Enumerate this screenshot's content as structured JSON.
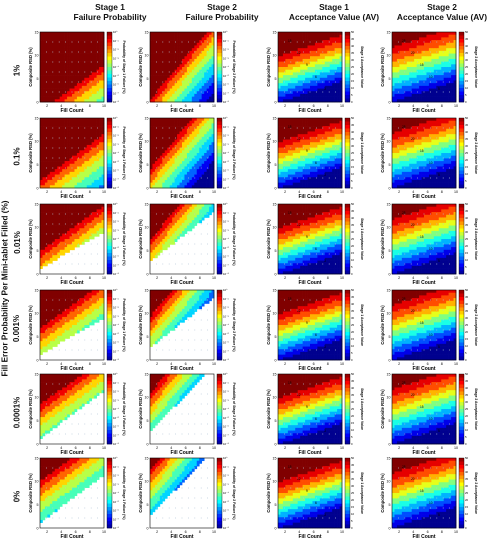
{
  "figure": {
    "y_axis_label": "Fill Error Probability Per Mini-tablet Filled (%)",
    "columns": [
      {
        "line1": "Stage 1",
        "line2": "Failure Probability"
      },
      {
        "line1": "Stage 2",
        "line2": "Failure Probability"
      },
      {
        "line1": "Stage 1",
        "line2": "Acceptance Value (AV)"
      },
      {
        "line1": "Stage 2",
        "line2": "Acceptance Value (AV)"
      }
    ],
    "rows": [
      "1%",
      "0.1%",
      "0.01%",
      "0.001%",
      "0.0001%",
      "0%"
    ]
  },
  "colors": {
    "jet": [
      "#00008f",
      "#0000ff",
      "#0080ff",
      "#00ffff",
      "#80ff80",
      "#ffff00",
      "#ff8000",
      "#ff0000",
      "#800000"
    ],
    "background": "#ffffff",
    "dots": "#b5c7d8"
  },
  "chart_data": [
    {
      "type": "heatmap",
      "panel": "stage1-failure-probability",
      "xlabel": "Fill Count",
      "ylabel": "Composite RSD (%)",
      "colorbar_label": "Probability of Stage 1 Failure (%)",
      "xticks": [
        "2",
        "4",
        "6",
        "8",
        "10"
      ],
      "yticks": [
        "0",
        "5",
        "10",
        "15"
      ],
      "xlim": [
        1,
        10
      ],
      "ylim": [
        0,
        15
      ],
      "colorbar_ticks": [
        "10⁰",
        "10⁻¹",
        "10⁻²",
        "10⁻³",
        "10⁻⁴",
        "10⁻⁵",
        "10⁻⁶",
        "10⁻⁷",
        "10⁻⁸"
      ],
      "colormap": "jet (log scale)",
      "grid": false
    },
    {
      "type": "heatmap",
      "panel": "stage2-failure-probability",
      "xlabel": "Fill Count",
      "ylabel": "Composite RSD (%)",
      "colorbar_label": "Probability of Stage 2 Failure (%)",
      "xticks": [
        "2",
        "4",
        "6",
        "8",
        "10"
      ],
      "yticks": [
        "0",
        "5",
        "10",
        "15"
      ],
      "xlim": [
        1,
        10
      ],
      "ylim": [
        0,
        15
      ],
      "colorbar_ticks": [
        "10⁰",
        "10⁻¹",
        "10⁻²",
        "10⁻³",
        "10⁻⁴",
        "10⁻⁵",
        "10⁻⁶",
        "10⁻⁷",
        "10⁻⁸"
      ],
      "colormap": "jet (log scale)",
      "grid": false
    },
    {
      "type": "heatmap",
      "panel": "stage1-acceptance-value",
      "xlabel": "Fill Count",
      "ylabel": "Composite RSD (%)",
      "colorbar_label": "Stage 1 Acceptance Value",
      "xticks": [
        "2",
        "4",
        "6",
        "8",
        "10"
      ],
      "yticks": [
        "0",
        "5",
        "10",
        "15"
      ],
      "xlim": [
        1,
        10
      ],
      "ylim": [
        0,
        15
      ],
      "colorbar_ticks": [
        "0",
        "5",
        "10",
        "15",
        "20",
        "25",
        "30",
        "35",
        "40",
        "45",
        "50"
      ],
      "contour_labels": [
        "15",
        "12",
        "9",
        "6",
        "3"
      ],
      "colormap": "jet",
      "grid": false
    },
    {
      "type": "heatmap",
      "panel": "stage2-acceptance-value",
      "xlabel": "Fill Count",
      "ylabel": "Composite RSD (%)",
      "colorbar_label": "Stage 2 Acceptance Value",
      "xticks": [
        "2",
        "4",
        "6",
        "8",
        "10"
      ],
      "yticks": [
        "0",
        "5",
        "10",
        "15"
      ],
      "xlim": [
        1,
        10
      ],
      "ylim": [
        0,
        15
      ],
      "colorbar_ticks": [
        "0",
        "5",
        "10",
        "15",
        "20",
        "25",
        "30",
        "35",
        "40",
        "45",
        "50"
      ],
      "contour_labels": [
        "25",
        "20",
        "15",
        "10",
        "5"
      ],
      "colormap": "jet",
      "grid": false
    }
  ]
}
